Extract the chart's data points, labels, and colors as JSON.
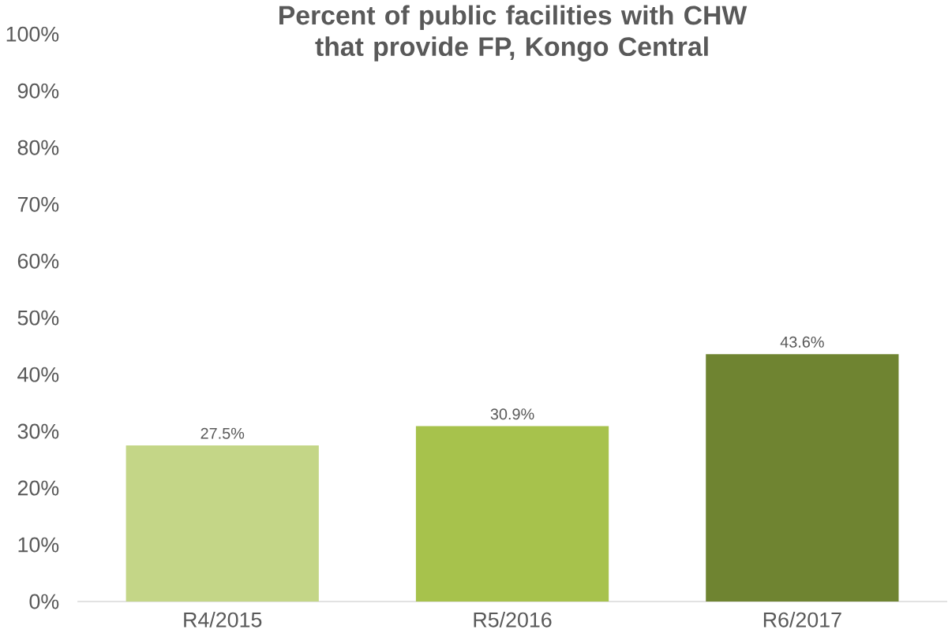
{
  "chart_data": {
    "type": "bar",
    "title": "Percent of public facilities with CHW that provide FP, Kongo Central",
    "categories": [
      "R4/2015",
      "R5/2016",
      "R6/2017"
    ],
    "values": [
      27.5,
      30.9,
      43.6
    ],
    "colors": [
      "#c4d687",
      "#a7c24c",
      "#6f8431"
    ],
    "value_labels": [
      "27.5%",
      "30.9%",
      "43.6%"
    ],
    "ylim": [
      0,
      100
    ],
    "yticks": [
      {
        "value": 0,
        "label": "0%"
      },
      {
        "value": 10,
        "label": "10%"
      },
      {
        "value": 20,
        "label": "20%"
      },
      {
        "value": 30,
        "label": "30%"
      },
      {
        "value": 40,
        "label": "40%"
      },
      {
        "value": 50,
        "label": "50%"
      },
      {
        "value": 60,
        "label": "60%"
      },
      {
        "value": 70,
        "label": "70%"
      },
      {
        "value": 80,
        "label": "80%"
      },
      {
        "value": 90,
        "label": "90%"
      },
      {
        "value": 100,
        "label": "100%"
      }
    ],
    "grid": false
  }
}
